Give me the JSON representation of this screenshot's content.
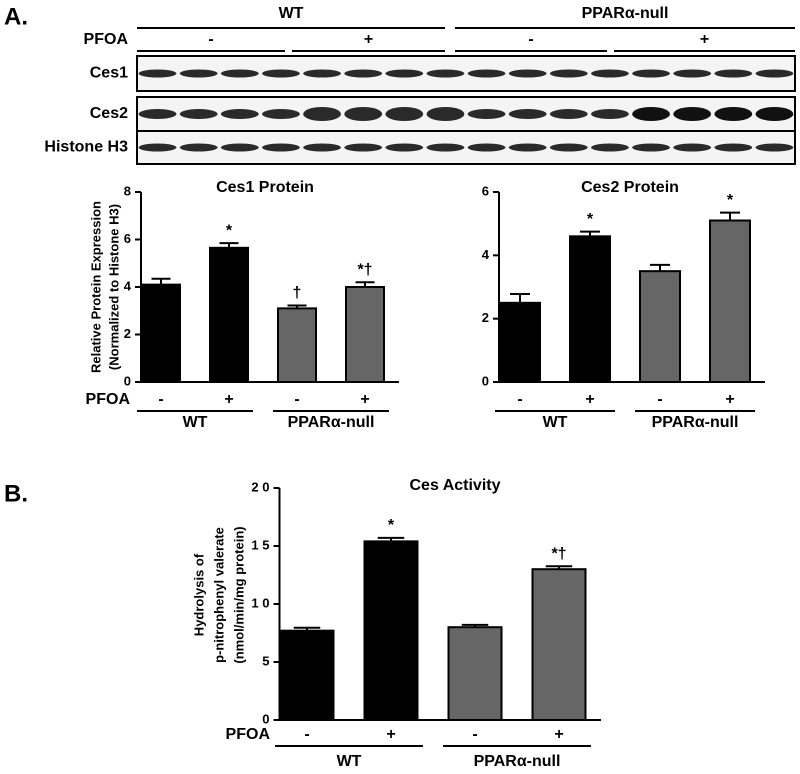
{
  "panel_labels": [
    "A.",
    "B."
  ],
  "blot": {
    "groups": [
      "WT",
      "PPARα-null"
    ],
    "treatment_label": "PFOA",
    "treatments": [
      "-",
      "+",
      "-",
      "+"
    ],
    "rows": [
      "Ces1",
      "Ces2",
      "Histone H3"
    ]
  },
  "chart_data": [
    {
      "type": "bar",
      "title": "Ces1 Protein",
      "ylabel": [
        "Relative Protein Expression",
        "(Normalized to Histone H3)"
      ],
      "xlabel": "PFOA",
      "categories": [
        "-",
        "+",
        "-",
        "+"
      ],
      "groups": [
        "WT",
        "PPARα-null"
      ],
      "values": [
        4.1,
        5.65,
        3.1,
        4.0
      ],
      "errors": [
        0.25,
        0.2,
        0.12,
        0.2
      ],
      "annotations": [
        null,
        "*",
        "†",
        "*†"
      ],
      "colors": [
        "#000000",
        "#000000",
        "#666666",
        "#666666"
      ],
      "ylim": [
        0,
        8
      ],
      "yticks": [
        0,
        2,
        4,
        6,
        8
      ]
    },
    {
      "type": "bar",
      "title": "Ces2 Protein",
      "categories": [
        "-",
        "+",
        "-",
        "+"
      ],
      "groups": [
        "WT",
        "PPARα-null"
      ],
      "values": [
        2.5,
        4.6,
        3.5,
        5.1
      ],
      "errors": [
        0.28,
        0.15,
        0.2,
        0.25
      ],
      "annotations": [
        null,
        "*",
        null,
        "*"
      ],
      "colors": [
        "#000000",
        "#000000",
        "#666666",
        "#666666"
      ],
      "ylim": [
        0,
        6
      ],
      "yticks": [
        0,
        2,
        4,
        6
      ]
    },
    {
      "type": "bar",
      "title": "Ces Activity",
      "ylabel": [
        "Hydrolysis of",
        "p-nitrophenyl valerate",
        "(nmol/min/mg protein)"
      ],
      "xlabel": "PFOA",
      "categories": [
        "-",
        "+",
        "-",
        "+"
      ],
      "groups": [
        "WT",
        "PPARα-null"
      ],
      "values": [
        7.7,
        15.4,
        8.0,
        13.0
      ],
      "errors": [
        0.25,
        0.3,
        0.2,
        0.25
      ],
      "annotations": [
        null,
        "*",
        null,
        "*†"
      ],
      "colors": [
        "#000000",
        "#000000",
        "#666666",
        "#666666"
      ],
      "ylim": [
        0,
        20
      ],
      "yticks": [
        0,
        5,
        {
          "value": 10,
          "label": "1 0"
        },
        {
          "value": 15,
          "label": "1 5"
        },
        {
          "value": 20,
          "label": "2 0"
        }
      ]
    }
  ]
}
